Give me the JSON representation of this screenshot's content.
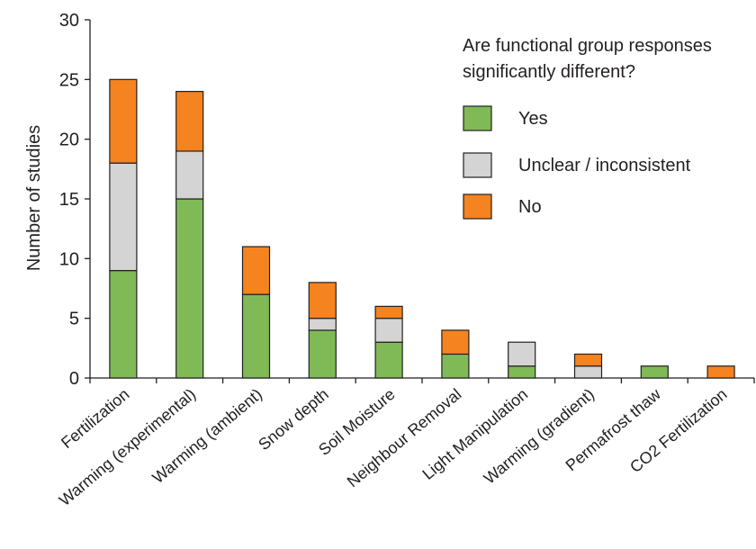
{
  "chart_data": {
    "type": "bar",
    "stacked": true,
    "ylabel": "Number of studies",
    "ylim": [
      0,
      30
    ],
    "yticks": [
      "0",
      "5",
      "10",
      "15",
      "20",
      "25",
      "30"
    ],
    "categories": [
      "Fertilization",
      "Warming (experimental)",
      "Warming (ambient)",
      "Snow depth",
      "Soil Moisture",
      "Neighbour Removal",
      "Light Manipulation",
      "Warming (gradient)",
      "Permafrost thaw",
      "CO2 Fertilization"
    ],
    "series": [
      {
        "name": "Yes",
        "color": "#7fba57",
        "values": [
          9,
          15,
          7,
          4,
          3,
          2,
          1,
          0,
          1,
          0
        ]
      },
      {
        "name": "Unclear / inconsistent",
        "color": "#d4d4d4",
        "values": [
          9,
          4,
          0,
          1,
          2,
          0,
          2,
          1,
          0,
          0
        ]
      },
      {
        "name": "No",
        "color": "#f5831f",
        "values": [
          7,
          5,
          4,
          3,
          1,
          2,
          0,
          1,
          0,
          1
        ]
      }
    ],
    "legend": {
      "title_line1": "Are functional group responses",
      "title_line2": "significantly different?",
      "placement": "top-right"
    },
    "grid": false
  }
}
